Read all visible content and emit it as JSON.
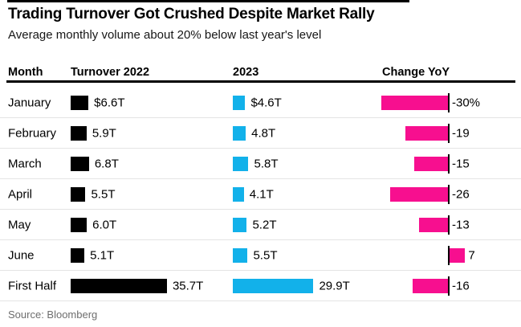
{
  "header": {
    "title": "Trading Turnover Got Crushed Despite Market Rally",
    "subtitle": "Average monthly volume about 20% below last year's level"
  },
  "table": {
    "columns": [
      "Month",
      "Turnover 2022",
      "2023",
      "Change YoY"
    ],
    "rows": [
      {
        "month": "January",
        "turnover_2022": 6.6,
        "turnover_2022_label": "$6.6T",
        "turnover_2023": 4.6,
        "turnover_2023_label": "$4.6T",
        "change_yoy": -30,
        "change_label": "-30%"
      },
      {
        "month": "February",
        "turnover_2022": 5.9,
        "turnover_2022_label": "5.9T",
        "turnover_2023": 4.8,
        "turnover_2023_label": "4.8T",
        "change_yoy": -19,
        "change_label": "-19"
      },
      {
        "month": "March",
        "turnover_2022": 6.8,
        "turnover_2022_label": "6.8T",
        "turnover_2023": 5.8,
        "turnover_2023_label": "5.8T",
        "change_yoy": -15,
        "change_label": "-15"
      },
      {
        "month": "April",
        "turnover_2022": 5.5,
        "turnover_2022_label": "5.5T",
        "turnover_2023": 4.1,
        "turnover_2023_label": "4.1T",
        "change_yoy": -26,
        "change_label": "-26"
      },
      {
        "month": "May",
        "turnover_2022": 6.0,
        "turnover_2022_label": "6.0T",
        "turnover_2023": 5.2,
        "turnover_2023_label": "5.2T",
        "change_yoy": -13,
        "change_label": "-13"
      },
      {
        "month": "June",
        "turnover_2022": 5.1,
        "turnover_2022_label": "5.1T",
        "turnover_2023": 5.5,
        "turnover_2023_label": "5.5T",
        "change_yoy": 7,
        "change_label": "7"
      },
      {
        "month": "First Half",
        "turnover_2022": 35.7,
        "turnover_2022_label": "35.7T",
        "turnover_2023": 29.9,
        "turnover_2023_label": "29.9T",
        "change_yoy": -16,
        "change_label": "-16"
      }
    ]
  },
  "footer": {
    "source": "Source: Bloomberg"
  },
  "colors": {
    "bar_2022": "#000000",
    "bar_2023": "#12b1ea",
    "bar_change": "#f70f8f"
  },
  "chart_data": {
    "type": "bar",
    "title": "Trading Turnover Got Crushed Despite Market Rally",
    "subtitle": "Average monthly volume about 20% below last year's level",
    "categories": [
      "January",
      "February",
      "March",
      "April",
      "May",
      "June",
      "First Half"
    ],
    "series": [
      {
        "name": "Turnover 2022",
        "unit": "$T",
        "values": [
          6.6,
          5.9,
          6.8,
          5.5,
          6.0,
          5.1,
          35.7
        ]
      },
      {
        "name": "2023",
        "unit": "$T",
        "values": [
          4.6,
          4.8,
          5.8,
          4.1,
          5.2,
          5.5,
          29.9
        ]
      },
      {
        "name": "Change YoY",
        "unit": "%",
        "values": [
          -30,
          -19,
          -15,
          -26,
          -13,
          7,
          -16
        ]
      }
    ],
    "layout": "horizontal bars per table row; change bars anchored to zero baseline, negative extend left, positive extend right",
    "source": "Source: Bloomberg"
  }
}
